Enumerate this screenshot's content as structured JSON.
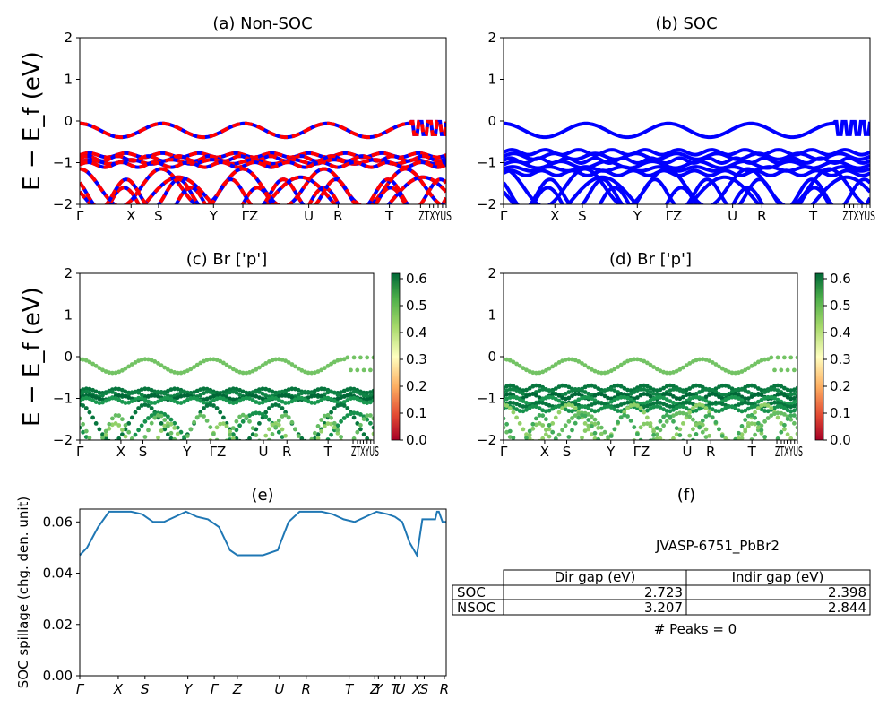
{
  "chart_data": [
    {
      "id": "a",
      "type": "line",
      "title": "(a) Non-SOC",
      "ylabel": "E − E_f (eV)",
      "ylim": [
        -2,
        2
      ],
      "yticks": [
        "2",
        "1",
        "0",
        "−1",
        "−2"
      ],
      "kpoint_labels": [
        "Γ",
        "X",
        "S",
        "Y",
        "ΓZ",
        "U",
        "R",
        "T",
        "ZTXYUS"
      ],
      "kpoint_fracs": [
        0.0,
        0.14,
        0.215,
        0.365,
        0.445,
        0.625,
        0.705,
        0.845,
        0.93,
        0.945,
        0.955,
        0.965,
        0.978,
        0.99,
        1.0
      ],
      "band_colors": [
        "#ff0000",
        "#0000ff"
      ],
      "line_style": "dashed"
    },
    {
      "id": "b",
      "type": "line",
      "title": "(b) SOC",
      "ylim": [
        -2,
        2
      ],
      "yticks": [
        "2",
        "1",
        "0",
        "−1",
        "−2"
      ],
      "kpoint_labels": [
        "Γ",
        "X",
        "S",
        "Y",
        "ΓZ",
        "U",
        "R",
        "T",
        "ZTXYUS"
      ],
      "band_colors": [
        "#0000ff"
      ],
      "line_style": "solid"
    },
    {
      "id": "c",
      "type": "scatter",
      "title": "(c)  Br ['p']",
      "ylabel": "E − E_f (eV)",
      "ylim": [
        -2,
        2
      ],
      "yticks": [
        "2",
        "1",
        "0",
        "−1",
        "−2"
      ],
      "kpoint_labels": [
        "Γ",
        "X",
        "S",
        "Y",
        "ΓZ",
        "U",
        "R",
        "T",
        "ZTXYUS"
      ],
      "colorbar": {
        "ticks": [
          "0.6",
          "0.5",
          "0.4",
          "0.3",
          "0.2",
          "0.1",
          "0.0"
        ],
        "range": [
          0,
          0.62
        ],
        "colormap": "RdYlGn"
      }
    },
    {
      "id": "d",
      "type": "scatter",
      "title": "(d) Br ['p']",
      "ylim": [
        -2,
        2
      ],
      "yticks": [
        "2",
        "1",
        "0",
        "−1",
        "−2"
      ],
      "kpoint_labels": [
        "Γ",
        "X",
        "S",
        "Y",
        "ΓZ",
        "U",
        "R",
        "T",
        "ZTXYUS"
      ],
      "colorbar": {
        "ticks": [
          "0.6",
          "0.5",
          "0.4",
          "0.3",
          "0.2",
          "0.1",
          "0.0"
        ],
        "range": [
          0,
          0.62
        ],
        "colormap": "RdYlGn"
      }
    },
    {
      "id": "e",
      "type": "line",
      "title": "(e)",
      "ylabel": "SOC spillage (chg. den. unit)",
      "ylim": [
        0,
        0.065
      ],
      "yticks": [
        "0.06",
        "0.04",
        "0.02",
        "0.00"
      ],
      "xtick_labels": [
        "Γ",
        "X",
        "S",
        "Y",
        "Γ",
        "Z",
        "U",
        "R",
        "T",
        "Z",
        "Y",
        "T",
        "U",
        "X",
        "S",
        "R"
      ],
      "series": [
        {
          "color": "#1f77b4",
          "x": [
            0,
            0.02,
            0.05,
            0.08,
            0.11,
            0.14,
            0.17,
            0.2,
            0.23,
            0.26,
            0.29,
            0.32,
            0.35,
            0.38,
            0.41,
            0.43,
            0.46,
            0.5,
            0.54,
            0.57,
            0.6,
            0.63,
            0.66,
            0.69,
            0.72,
            0.75,
            0.78,
            0.81,
            0.84,
            0.86,
            0.88,
            0.9,
            0.92,
            0.935,
            0.94,
            0.955,
            0.97,
            0.975,
            0.98,
            0.99,
            1.0
          ],
          "y": [
            0.047,
            0.05,
            0.058,
            0.064,
            0.064,
            0.064,
            0.063,
            0.06,
            0.06,
            0.062,
            0.064,
            0.062,
            0.061,
            0.058,
            0.049,
            0.047,
            0.047,
            0.047,
            0.049,
            0.06,
            0.064,
            0.064,
            0.064,
            0.063,
            0.061,
            0.06,
            0.062,
            0.064,
            0.063,
            0.062,
            0.06,
            0.052,
            0.047,
            0.061,
            0.061,
            0.061,
            0.061,
            0.064,
            0.064,
            0.06,
            0.06
          ]
        }
      ]
    }
  ],
  "panel_f": {
    "title": "(f)",
    "material": "JVASP-6751_PbBr2",
    "headers": [
      "Dir gap (eV)",
      "Indir gap (eV)"
    ],
    "rows": [
      {
        "label": "SOC",
        "dir": "2.723",
        "indir": "2.398"
      },
      {
        "label": "NSOC",
        "dir": "3.207",
        "indir": "2.844"
      }
    ],
    "peaks": "# Peaks = 0"
  }
}
